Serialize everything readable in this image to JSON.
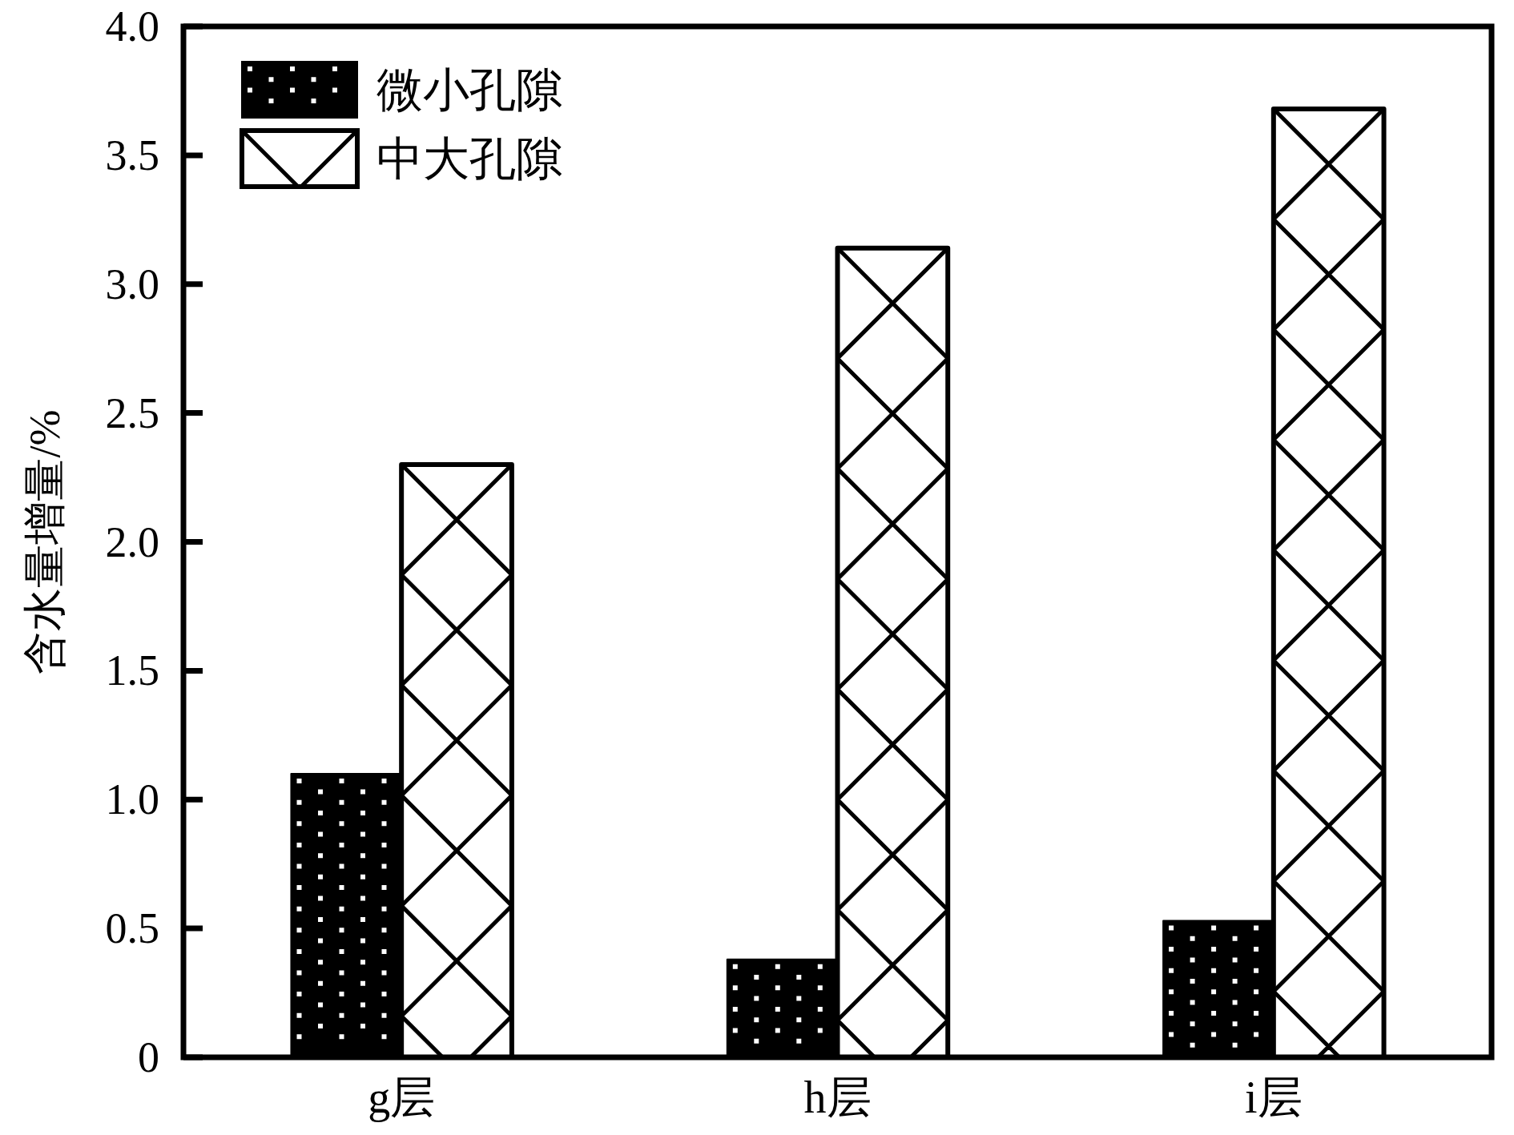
{
  "chart_data": {
    "type": "bar",
    "ylabel": "含水量增量/%",
    "categories": [
      "g层",
      "h层",
      "i层"
    ],
    "series": [
      {
        "name": "微小孔隙",
        "color": "#000000",
        "values": [
          1.1,
          0.38,
          0.53
        ]
      },
      {
        "name": "中大孔隙",
        "color": "#ffffff",
        "values": [
          2.3,
          3.14,
          3.68
        ]
      }
    ],
    "ylim": [
      0,
      4
    ],
    "yticks": [
      0,
      0.5,
      {
        "value": 1,
        "label": "1.0"
      },
      1.5,
      {
        "value": 2,
        "label": "2.0"
      },
      2.5,
      {
        "value": 3,
        "label": "3.0"
      },
      3.5,
      {
        "value": 4,
        "label": "4.0"
      }
    ],
    "legend": "top left"
  }
}
